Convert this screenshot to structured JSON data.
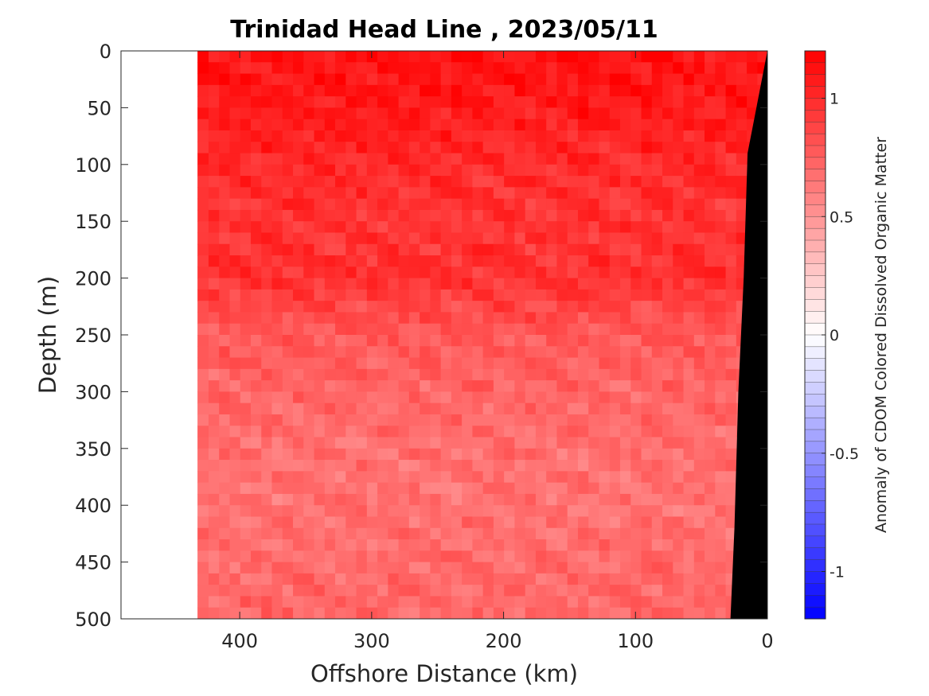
{
  "chart_data": {
    "type": "heatmap",
    "title": "Trinidad Head Line , 2023/05/11",
    "xlabel": "Offshore Distance (km)",
    "ylabel": "Depth (m)",
    "colorbar_label": "Anomaly of CDOM Colored Dissolved Organic Matter",
    "xlim": [
      490,
      0
    ],
    "ylim": [
      500,
      0
    ],
    "x_reversed": true,
    "y_reversed": true,
    "x_ticks": [
      400,
      300,
      200,
      100,
      0
    ],
    "x_tick_labels": [
      "400",
      "300",
      "200",
      "100",
      "0"
    ],
    "y_ticks": [
      0,
      50,
      100,
      150,
      200,
      250,
      300,
      350,
      400,
      450,
      500
    ],
    "y_tick_labels": [
      "0",
      "50",
      "100",
      "150",
      "200",
      "250",
      "300",
      "350",
      "400",
      "450",
      "500"
    ],
    "color_limits": [
      -1.2,
      1.2
    ],
    "colorbar_ticks": [
      1,
      0.5,
      0,
      -0.5,
      -1
    ],
    "colorbar_tick_labels": [
      "1",
      "0.5",
      "0",
      "-0.5",
      "-1"
    ],
    "colormap": [
      "#0000ff",
      "#ffffff",
      "#ff0000"
    ],
    "data_extent_km": [
      0,
      432
    ],
    "bathymetry_color": "#000000",
    "bathymetry": [
      [
        0,
        0
      ],
      [
        10,
        60
      ],
      [
        15,
        90
      ],
      [
        18,
        200
      ],
      [
        22,
        300
      ],
      [
        25,
        420
      ],
      [
        28,
        500
      ]
    ],
    "anomaly_profile": {
      "depth": [
        0,
        50,
        100,
        150,
        200,
        250,
        300,
        350,
        400,
        450,
        500
      ],
      "mean_anomaly": [
        1.12,
        1.08,
        1.0,
        0.95,
        0.97,
        0.78,
        0.72,
        0.68,
        0.66,
        0.7,
        0.72
      ]
    }
  }
}
